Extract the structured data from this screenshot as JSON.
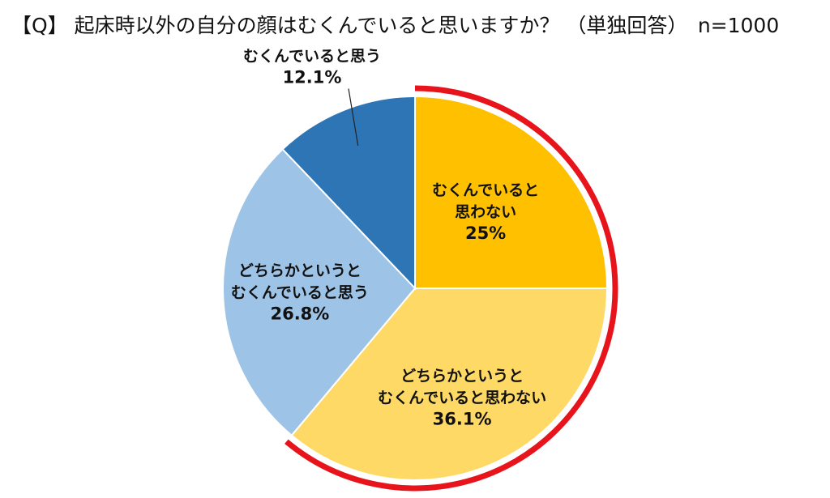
{
  "chart_data": {
    "type": "pie",
    "title": "【Q】 起床時以外の自分の顔はむくんでいると思いますか？ （単独回答）　n=1000",
    "start": "12 o'clock, clockwise",
    "slices": [
      {
        "name": "むくんでいると思わない",
        "lines": [
          "むくんでいると",
          "思わない"
        ],
        "value": 25.0,
        "value_label": "25%",
        "color": "#FFC000"
      },
      {
        "name": "どちらかというとむくんでいると思わない",
        "lines": [
          "どちらかというと",
          "むくんでいると思わない"
        ],
        "value": 36.1,
        "value_label": "36.1%",
        "color": "#FFD966"
      },
      {
        "name": "どちらかというとむくんでいると思う",
        "lines": [
          "どちらかというと",
          "むくんでいると思う"
        ],
        "value": 26.8,
        "value_label": "26.8%",
        "color": "#9DC3E6"
      },
      {
        "name": "むくんでいると思う",
        "lines": [
          "むくんでいると思う"
        ],
        "value": 12.1,
        "value_label": "12.1%",
        "color": "#2E75B6"
      }
    ],
    "highlight": {
      "slices": [
        "むくんでいると思わない",
        "どちらかというとむくんでいると思わない"
      ],
      "color": "#E8141C"
    }
  }
}
